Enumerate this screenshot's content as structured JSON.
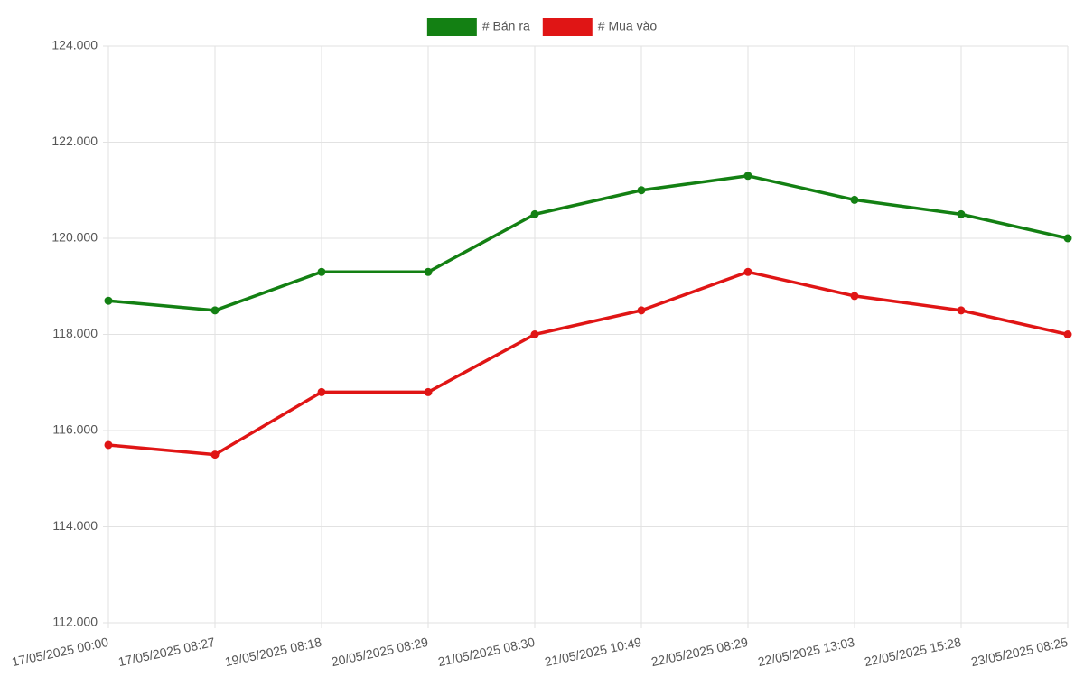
{
  "chart_data": {
    "type": "line",
    "categories": [
      "17/05/2025 00:00",
      "17/05/2025 08:27",
      "19/05/2025 08:18",
      "20/05/2025 08:29",
      "21/05/2025 08:30",
      "21/05/2025 10:49",
      "22/05/2025 08:29",
      "22/05/2025 13:03",
      "22/05/2025 15:28",
      "23/05/2025 08:25"
    ],
    "series": [
      {
        "name": "# Bán ra",
        "color": "#138013",
        "values": [
          118700,
          118500,
          119300,
          119300,
          120500,
          121000,
          121300,
          120800,
          120500,
          120000
        ]
      },
      {
        "name": "# Mua vào",
        "color": "#e01515",
        "values": [
          115700,
          115500,
          116800,
          116800,
          118000,
          118500,
          119300,
          118800,
          118500,
          118000
        ]
      }
    ],
    "ylim": [
      112000,
      124000
    ],
    "yticks": [
      {
        "value": 112000,
        "label": "112.000"
      },
      {
        "value": 114000,
        "label": "114.000"
      },
      {
        "value": 116000,
        "label": "116.000"
      },
      {
        "value": 118000,
        "label": "118.000"
      },
      {
        "value": 120000,
        "label": "120.000"
      },
      {
        "value": 122000,
        "label": "122.000"
      },
      {
        "value": 124000,
        "label": "124.000"
      }
    ],
    "grid": true
  }
}
